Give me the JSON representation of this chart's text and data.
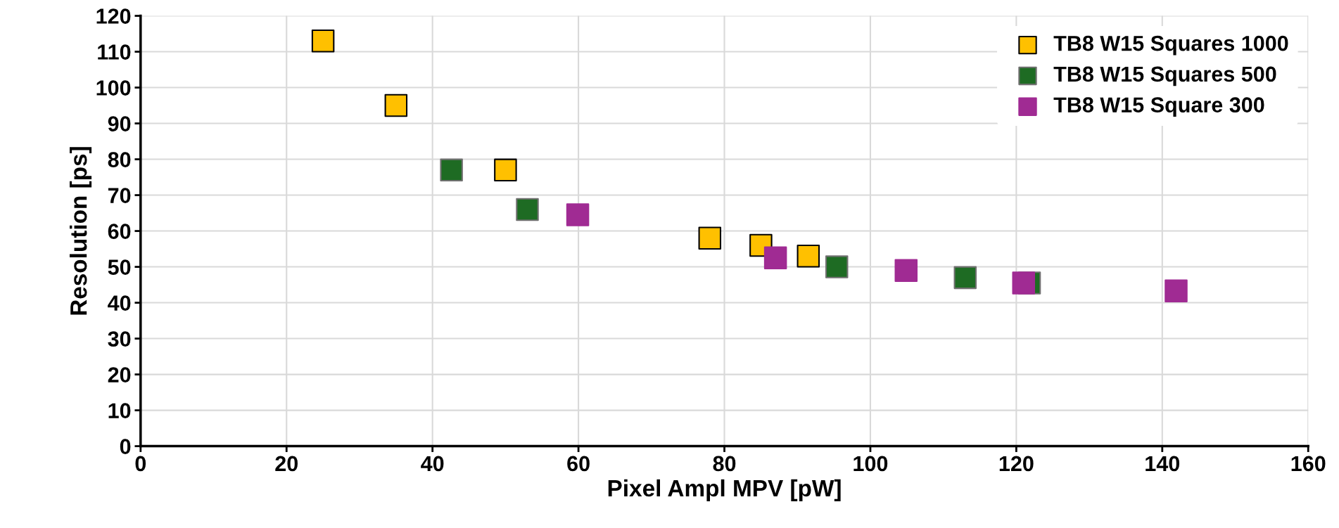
{
  "chart_data": {
    "type": "scatter",
    "xlabel": "Pixel Ampl MPV [pW]",
    "ylabel": "Resolution [ps]",
    "xlim": [
      0,
      160
    ],
    "xticks": [
      0,
      20,
      40,
      60,
      80,
      100,
      120,
      140,
      160
    ],
    "ylim": [
      0,
      120
    ],
    "yticks": [
      0,
      10,
      20,
      30,
      40,
      50,
      60,
      70,
      80,
      90,
      100,
      110,
      120
    ],
    "grid": true,
    "legend": "top right",
    "marker": "square",
    "series": [
      {
        "name": "TB8 W15 Squares 1000",
        "color": "#ffc000",
        "x": [
          25,
          35,
          50,
          78,
          85,
          91.5
        ],
        "values": [
          113,
          95,
          77,
          58,
          56,
          53
        ]
      },
      {
        "name": "TB8 W15 Squares 500",
        "color": "#1e6b23",
        "x": [
          42.6,
          53,
          95.4,
          113,
          121.8
        ],
        "values": [
          77,
          66,
          50,
          47,
          45.5
        ]
      },
      {
        "name": "TB8 W15 Square 300",
        "color": "#a02b93",
        "x": [
          59.9,
          87,
          104.9,
          121,
          141.9
        ],
        "values": [
          64.5,
          52.5,
          49,
          45.5,
          43.3
        ]
      }
    ]
  }
}
